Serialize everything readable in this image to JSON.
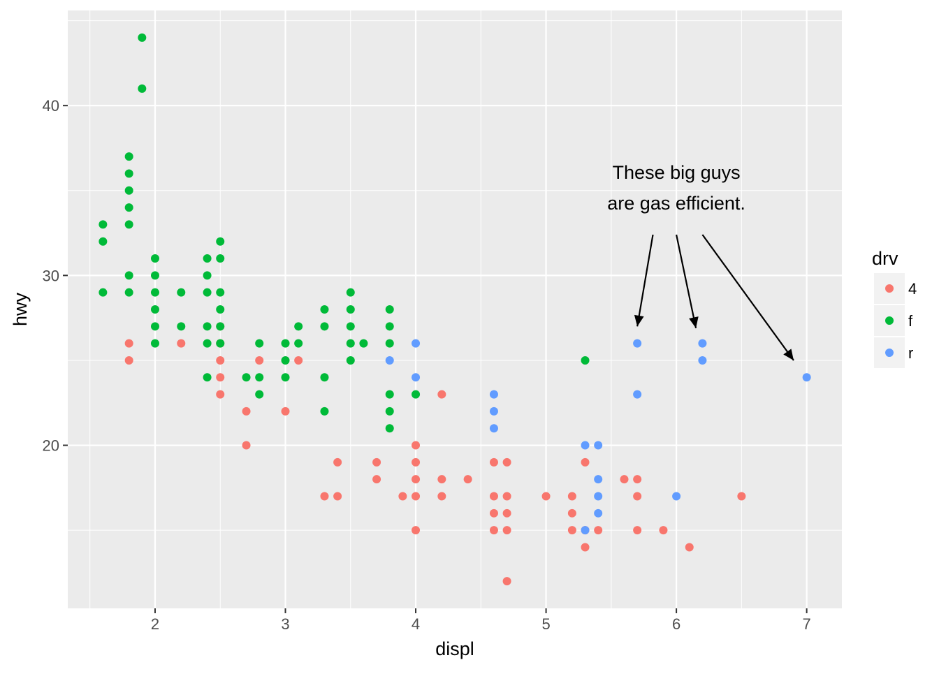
{
  "chart_data": {
    "type": "scatter",
    "xlabel": "displ",
    "ylabel": "hwy",
    "xlim": [
      1.33,
      7.27
    ],
    "ylim": [
      10.4,
      45.6
    ],
    "x_ticks": [
      2,
      3,
      4,
      5,
      6,
      7
    ],
    "x_tick_labels": [
      "2",
      "3",
      "4",
      "5",
      "6",
      "7"
    ],
    "y_ticks": [
      20,
      30,
      40
    ],
    "y_tick_labels": [
      "20",
      "30",
      "40"
    ],
    "grid": true,
    "legend": {
      "title": "drv",
      "placement": "right",
      "entries": [
        {
          "label": "4",
          "color": "#F8766D"
        },
        {
          "label": "f",
          "color": "#00BA38"
        },
        {
          "label": "r",
          "color": "#619CFF"
        }
      ]
    },
    "annotation": {
      "lines": [
        "These big guys",
        "are gas efficient."
      ],
      "anchor": {
        "x": 6.0,
        "y": 35.2
      },
      "arrows": [
        {
          "from": [
            5.82,
            32.4
          ],
          "to": [
            5.7,
            27.0
          ]
        },
        {
          "from": [
            6.0,
            32.4
          ],
          "to": [
            6.15,
            26.9
          ]
        },
        {
          "from": [
            6.2,
            32.4
          ],
          "to": [
            6.9,
            25.0
          ]
        }
      ]
    },
    "series": [
      {
        "name": "4",
        "color": "#F8766D",
        "points": [
          [
            1.8,
            26
          ],
          [
            1.8,
            25
          ],
          [
            2.2,
            26
          ],
          [
            2.5,
            27
          ],
          [
            2.5,
            26
          ],
          [
            2.5,
            25
          ],
          [
            2.5,
            24
          ],
          [
            2.5,
            23
          ],
          [
            2.7,
            22
          ],
          [
            2.7,
            20
          ],
          [
            2.8,
            25
          ],
          [
            3.0,
            22
          ],
          [
            3.1,
            25
          ],
          [
            3.3,
            17
          ],
          [
            3.4,
            19
          ],
          [
            3.4,
            17
          ],
          [
            3.7,
            19
          ],
          [
            3.7,
            18
          ],
          [
            3.9,
            17
          ],
          [
            4.0,
            20
          ],
          [
            4.0,
            19
          ],
          [
            4.0,
            18
          ],
          [
            4.0,
            17
          ],
          [
            4.0,
            15
          ],
          [
            4.2,
            23
          ],
          [
            4.2,
            18
          ],
          [
            4.2,
            17
          ],
          [
            4.4,
            18
          ],
          [
            4.6,
            19
          ],
          [
            4.6,
            17
          ],
          [
            4.6,
            16
          ],
          [
            4.6,
            15
          ],
          [
            4.7,
            19
          ],
          [
            4.7,
            17
          ],
          [
            4.7,
            16
          ],
          [
            4.7,
            15
          ],
          [
            4.7,
            12
          ],
          [
            5.0,
            17
          ],
          [
            5.2,
            17
          ],
          [
            5.2,
            16
          ],
          [
            5.2,
            15
          ],
          [
            5.3,
            19
          ],
          [
            5.3,
            15
          ],
          [
            5.3,
            14
          ],
          [
            5.4,
            15
          ],
          [
            5.6,
            18
          ],
          [
            5.7,
            18
          ],
          [
            5.7,
            17
          ],
          [
            5.7,
            15
          ],
          [
            5.9,
            15
          ],
          [
            6.1,
            14
          ],
          [
            6.5,
            17
          ]
        ]
      },
      {
        "name": "f",
        "color": "#00BA38",
        "points": [
          [
            1.6,
            33
          ],
          [
            1.6,
            32
          ],
          [
            1.6,
            29
          ],
          [
            1.8,
            37
          ],
          [
            1.8,
            36
          ],
          [
            1.8,
            35
          ],
          [
            1.8,
            34
          ],
          [
            1.8,
            33
          ],
          [
            1.8,
            30
          ],
          [
            1.8,
            29
          ],
          [
            1.9,
            44
          ],
          [
            1.9,
            41
          ],
          [
            2.0,
            31
          ],
          [
            2.0,
            30
          ],
          [
            2.0,
            29
          ],
          [
            2.0,
            28
          ],
          [
            2.0,
            27
          ],
          [
            2.0,
            26
          ],
          [
            2.2,
            29
          ],
          [
            2.2,
            27
          ],
          [
            2.4,
            31
          ],
          [
            2.4,
            30
          ],
          [
            2.4,
            29
          ],
          [
            2.4,
            27
          ],
          [
            2.4,
            26
          ],
          [
            2.4,
            24
          ],
          [
            2.5,
            32
          ],
          [
            2.5,
            31
          ],
          [
            2.5,
            29
          ],
          [
            2.5,
            28
          ],
          [
            2.5,
            27
          ],
          [
            2.5,
            26
          ],
          [
            2.7,
            24
          ],
          [
            2.8,
            26
          ],
          [
            2.8,
            24
          ],
          [
            2.8,
            23
          ],
          [
            3.0,
            26
          ],
          [
            3.0,
            25
          ],
          [
            3.0,
            24
          ],
          [
            3.1,
            27
          ],
          [
            3.1,
            26
          ],
          [
            3.3,
            28
          ],
          [
            3.3,
            27
          ],
          [
            3.3,
            24
          ],
          [
            3.3,
            22
          ],
          [
            3.5,
            29
          ],
          [
            3.5,
            28
          ],
          [
            3.5,
            27
          ],
          [
            3.5,
            26
          ],
          [
            3.5,
            25
          ],
          [
            3.6,
            26
          ],
          [
            3.8,
            28
          ],
          [
            3.8,
            27
          ],
          [
            3.8,
            26
          ],
          [
            3.8,
            23
          ],
          [
            3.8,
            22
          ],
          [
            3.8,
            21
          ],
          [
            4.0,
            23
          ],
          [
            5.3,
            25
          ]
        ]
      },
      {
        "name": "r",
        "color": "#619CFF",
        "points": [
          [
            3.8,
            25
          ],
          [
            4.0,
            26
          ],
          [
            4.0,
            24
          ],
          [
            4.6,
            23
          ],
          [
            4.6,
            22
          ],
          [
            4.6,
            21
          ],
          [
            5.3,
            20
          ],
          [
            5.3,
            15
          ],
          [
            5.4,
            20
          ],
          [
            5.4,
            18
          ],
          [
            5.4,
            17
          ],
          [
            5.4,
            16
          ],
          [
            5.7,
            26
          ],
          [
            5.7,
            23
          ],
          [
            6.0,
            17
          ],
          [
            6.2,
            26
          ],
          [
            6.2,
            25
          ],
          [
            7.0,
            24
          ]
        ]
      }
    ]
  }
}
